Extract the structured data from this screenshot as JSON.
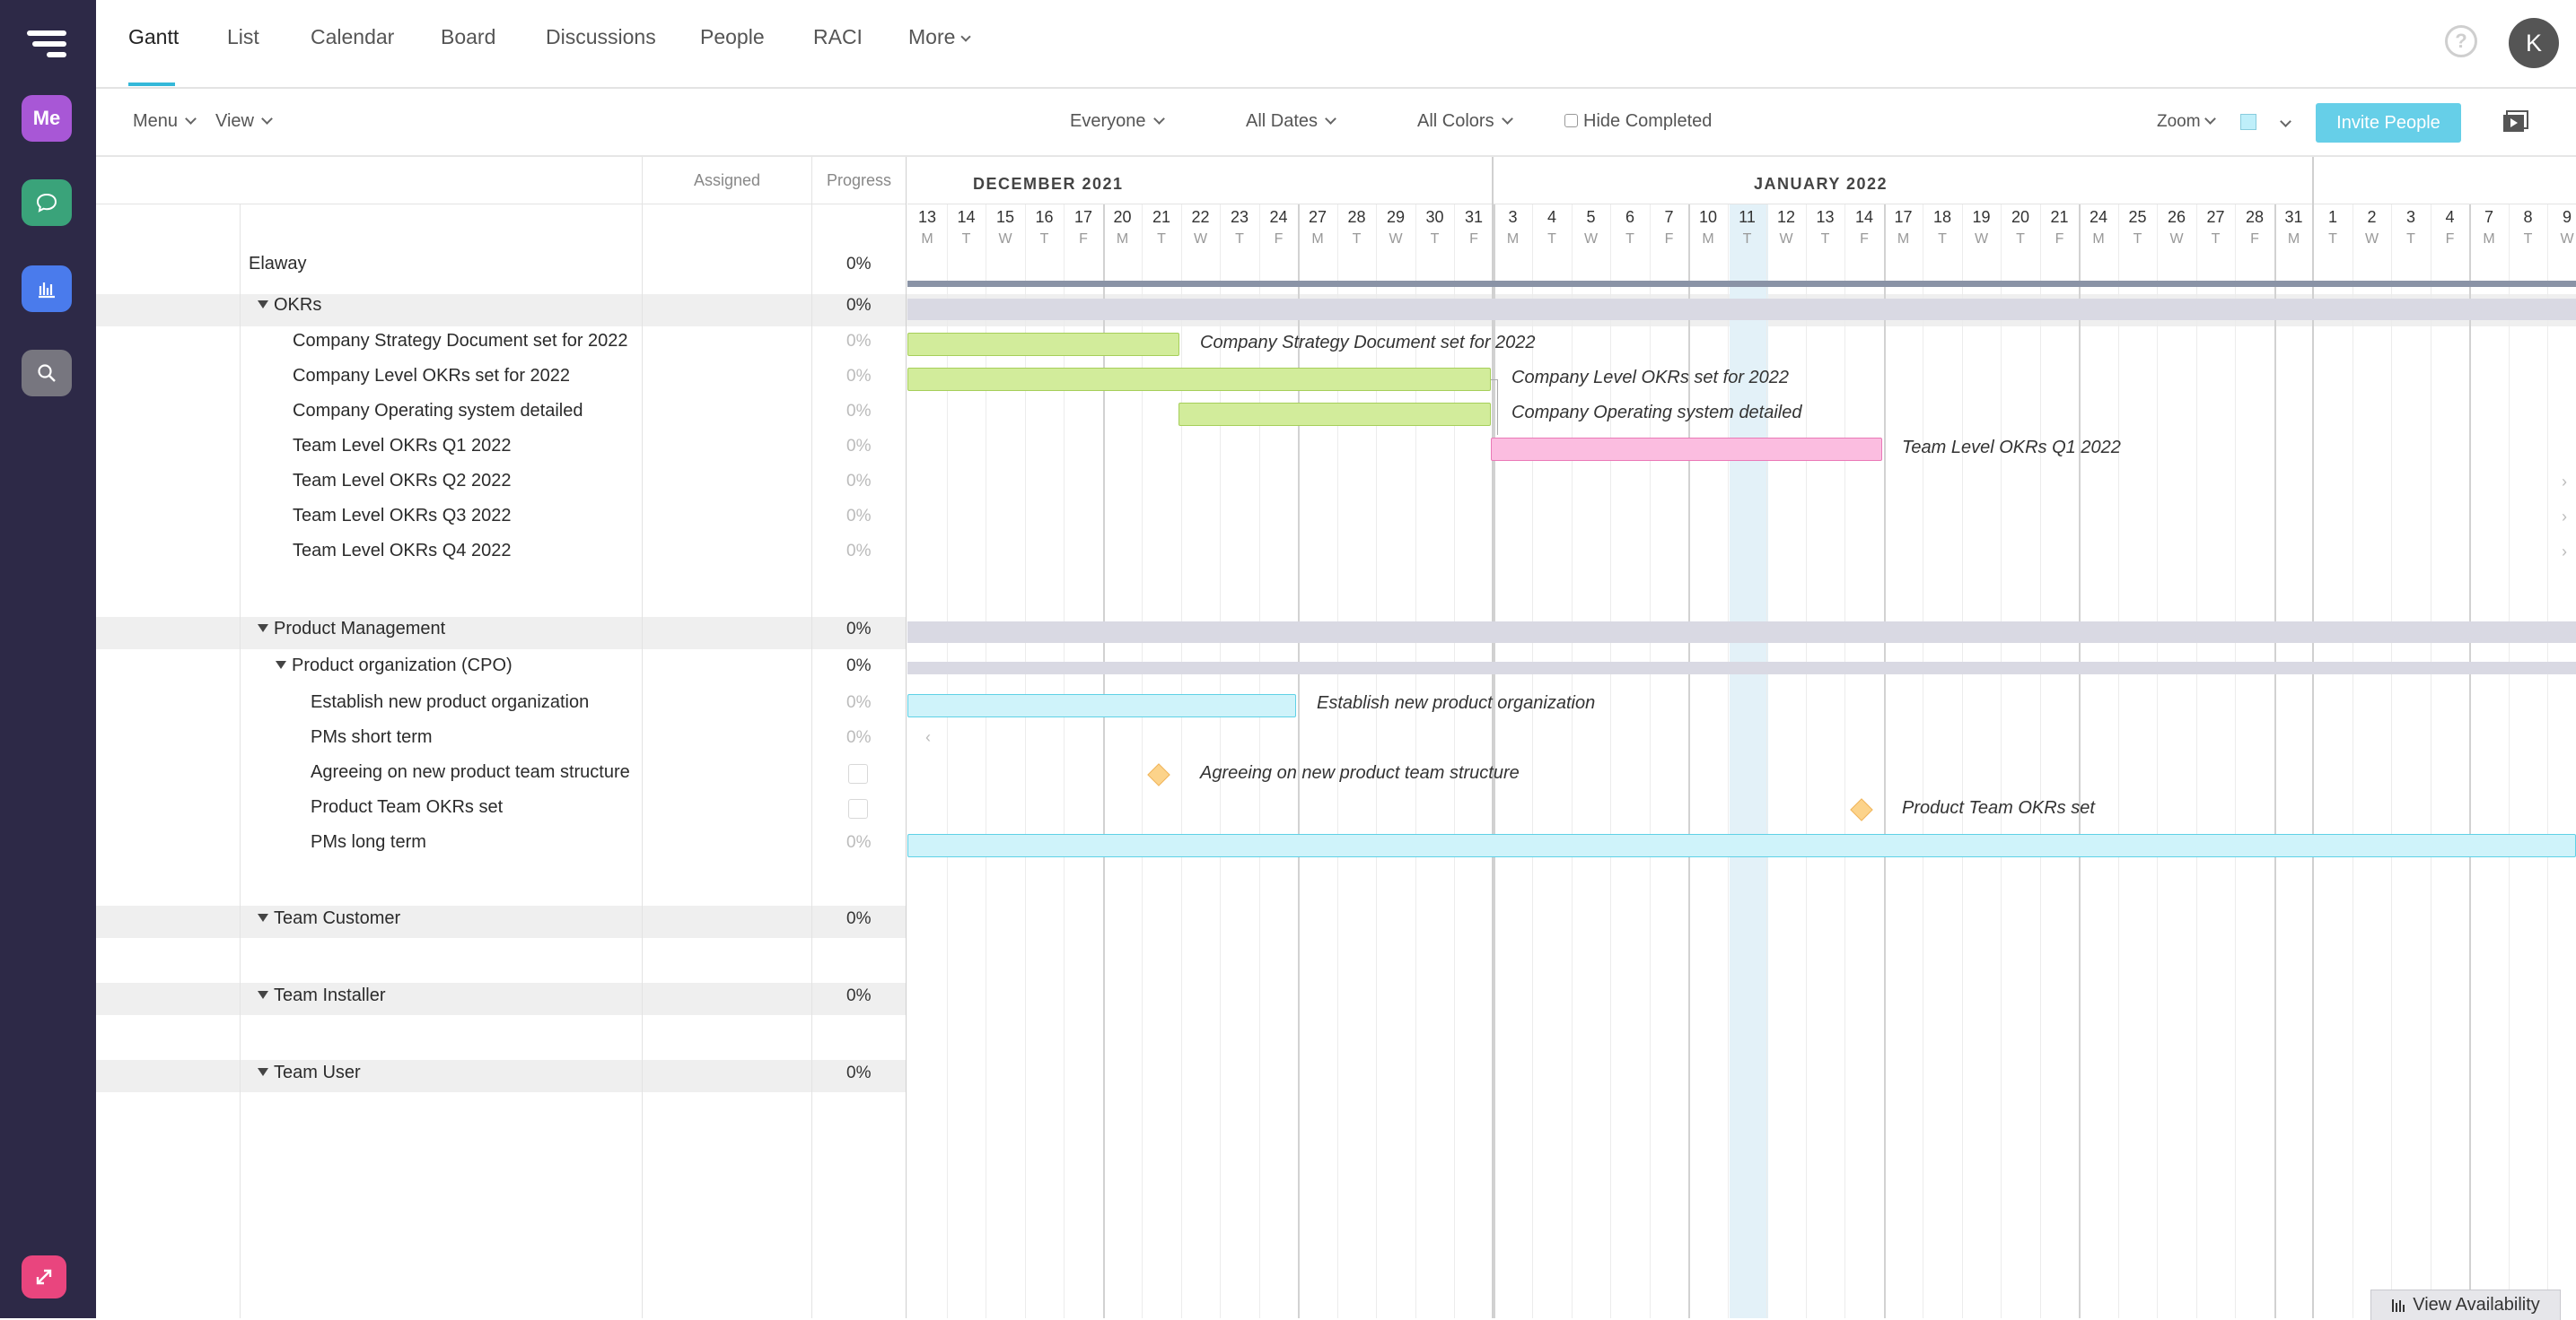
{
  "nav": {
    "tabs": [
      "Gantt",
      "List",
      "Calendar",
      "Board",
      "Discussions",
      "People",
      "RACI",
      "More"
    ],
    "active_tab": "Gantt",
    "help_label": "?",
    "avatar_initial": "K"
  },
  "rail": {
    "me_label": "Me"
  },
  "toolbar": {
    "menu": "Menu",
    "view": "View",
    "everyone": "Everyone",
    "all_dates": "All Dates",
    "all_colors": "All Colors",
    "hide_completed": "Hide Completed",
    "zoom": "Zoom",
    "invite": "Invite People"
  },
  "columns": {
    "assigned": "Assigned",
    "progress": "Progress"
  },
  "timeline": {
    "months": [
      "DECEMBER 2021",
      "JANUARY 2022"
    ],
    "days": [
      [
        "13",
        "M"
      ],
      [
        "14",
        "T"
      ],
      [
        "15",
        "W"
      ],
      [
        "16",
        "T"
      ],
      [
        "17",
        "F"
      ],
      [
        "20",
        "M"
      ],
      [
        "21",
        "T"
      ],
      [
        "22",
        "W"
      ],
      [
        "23",
        "T"
      ],
      [
        "24",
        "F"
      ],
      [
        "27",
        "M"
      ],
      [
        "28",
        "T"
      ],
      [
        "29",
        "W"
      ],
      [
        "30",
        "T"
      ],
      [
        "31",
        "F"
      ],
      [
        "3",
        "M"
      ],
      [
        "4",
        "T"
      ],
      [
        "5",
        "W"
      ],
      [
        "6",
        "T"
      ],
      [
        "7",
        "F"
      ],
      [
        "10",
        "M"
      ],
      [
        "11",
        "T"
      ],
      [
        "12",
        "W"
      ],
      [
        "13",
        "T"
      ],
      [
        "14",
        "F"
      ],
      [
        "17",
        "M"
      ],
      [
        "18",
        "T"
      ],
      [
        "19",
        "W"
      ],
      [
        "20",
        "T"
      ],
      [
        "21",
        "F"
      ],
      [
        "24",
        "M"
      ],
      [
        "25",
        "T"
      ],
      [
        "26",
        "W"
      ],
      [
        "27",
        "T"
      ],
      [
        "28",
        "F"
      ],
      [
        "31",
        "M"
      ],
      [
        "1",
        "T"
      ],
      [
        "2",
        "W"
      ],
      [
        "3",
        "T"
      ],
      [
        "4",
        "F"
      ],
      [
        "7",
        "M"
      ],
      [
        "8",
        "T"
      ],
      [
        "9",
        "W"
      ]
    ],
    "today_label": "11"
  },
  "rows": {
    "project": "Elaway",
    "project_pct": "0%",
    "okrs": "OKRs",
    "okrs_pct": "0%",
    "t1": "Company Strategy Document set for 2022",
    "t2": "Company Level OKRs set for 2022",
    "t3": "Company Operating system detailed",
    "t4": "Team Level OKRs Q1 2022",
    "t5": "Team Level OKRs Q2 2022",
    "t6": "Team Level OKRs Q3 2022",
    "t7": "Team Level OKRs Q4 2022",
    "task_pct": "0%",
    "pm": "Product Management",
    "pm_pct": "0%",
    "cpo": "Product organization (CPO)",
    "cpo_pct": "0%",
    "p1": "Establish new product organization",
    "p2": "PMs short term",
    "p3": "Agreeing on new product team structure",
    "p4": "Product Team OKRs set",
    "p5": "PMs long term",
    "customer": "Team Customer",
    "customer_pct": "0%",
    "installer": "Team Installer",
    "installer_pct": "0%",
    "user": "Team User",
    "user_pct": "0%"
  },
  "colors": {
    "rail": "#2d2947",
    "accent": "#34b8d9",
    "bar_green": "#d2ec9b",
    "bar_pink": "#fbbde0",
    "bar_cyan": "#cff3fa",
    "group_bar": "#d9d9e3"
  },
  "footer": {
    "view_availability": "View Availability"
  }
}
